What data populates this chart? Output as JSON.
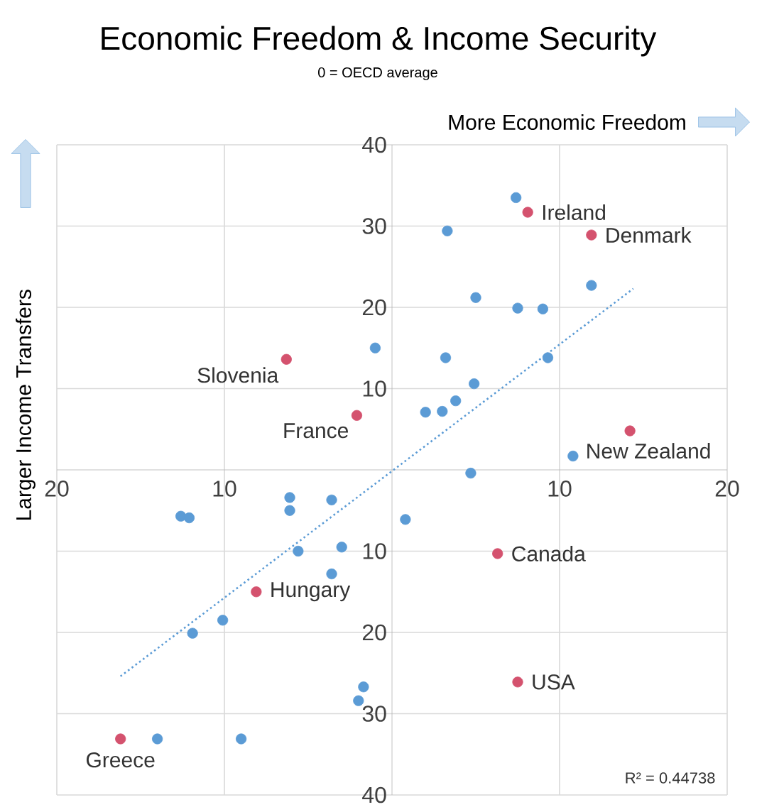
{
  "chart_data": {
    "type": "scatter",
    "title": "Economic Freedom & Income Security",
    "subtitle": "0 = OECD average",
    "xlabel": "More Economic Freedom",
    "ylabel": "Larger Income Transfers",
    "xlim": [
      -20,
      20
    ],
    "ylim": [
      -40,
      40
    ],
    "xticks": [
      {
        "value": -20,
        "label": "20"
      },
      {
        "value": -10,
        "label": "10"
      },
      {
        "value": 0,
        "label": null
      },
      {
        "value": 10,
        "label": "10"
      },
      {
        "value": 20,
        "label": "20"
      }
    ],
    "yticks": [
      {
        "value": -40,
        "label": "40"
      },
      {
        "value": -30,
        "label": "30"
      },
      {
        "value": -20,
        "label": "20"
      },
      {
        "value": -10,
        "label": "10"
      },
      {
        "value": 0,
        "label": null
      },
      {
        "value": 10,
        "label": "10"
      },
      {
        "value": 20,
        "label": "20"
      },
      {
        "value": 30,
        "label": "30"
      },
      {
        "value": 40,
        "label": "40"
      }
    ],
    "grid": true,
    "marker": "circle",
    "series": [
      {
        "color": "#5b9bd5",
        "x": [
          7.4,
          3.3,
          11.9,
          5.0,
          7.5,
          9.0,
          -1.0,
          3.2,
          9.3,
          4.9,
          3.8,
          3.0,
          2.0,
          10.8,
          4.7,
          -12.6,
          -12.1,
          -6.1,
          -6.1,
          -3.6,
          0.8,
          -3.0,
          -5.6,
          -3.6,
          -10.1,
          -11.9,
          -1.7,
          -2.0,
          -14.0,
          -9.0
        ],
        "values": [
          33.5,
          29.4,
          22.7,
          21.2,
          19.9,
          19.8,
          15.0,
          13.8,
          13.8,
          10.6,
          8.5,
          7.2,
          7.1,
          1.7,
          -0.4,
          -5.7,
          -5.9,
          -3.4,
          -5.0,
          -3.7,
          -6.1,
          -9.5,
          -10.0,
          -12.8,
          -18.5,
          -20.1,
          -26.7,
          -28.4,
          -33.1,
          -33.1
        ]
      },
      {
        "color": "#d4526e",
        "x": [
          8.1,
          11.9,
          -6.3,
          -2.1,
          14.2,
          6.3,
          -8.1,
          7.5,
          -16.2
        ],
        "values": [
          31.7,
          28.9,
          13.6,
          6.7,
          4.8,
          -10.3,
          -15.0,
          -26.1,
          -33.1
        ]
      },
      {
        "type": "line",
        "color": "#5b9bd5",
        "line_style": "dotted",
        "marker": "none",
        "x": [
          -16.2,
          14.4
        ],
        "values": [
          -25.4,
          22.3
        ]
      }
    ],
    "annotations": [
      {
        "text": "Ireland",
        "x": 8.1,
        "y": 31.7
      },
      {
        "text": "Denmark",
        "x": 11.9,
        "y": 28.9
      },
      {
        "text": "Slovenia",
        "x": -6.3,
        "y": 13.6
      },
      {
        "text": "France",
        "x": -2.1,
        "y": 6.7
      },
      {
        "text": "New Zealand",
        "x": 14.2,
        "y": 4.8
      },
      {
        "text": "Canada",
        "x": 6.3,
        "y": -10.3
      },
      {
        "text": "Hungary",
        "x": -8.1,
        "y": -15.0
      },
      {
        "text": "USA",
        "x": 7.5,
        "y": -26.1
      },
      {
        "text": "Greece",
        "x": -16.2,
        "y": -33.1
      },
      "R² = 0.44738"
    ]
  }
}
